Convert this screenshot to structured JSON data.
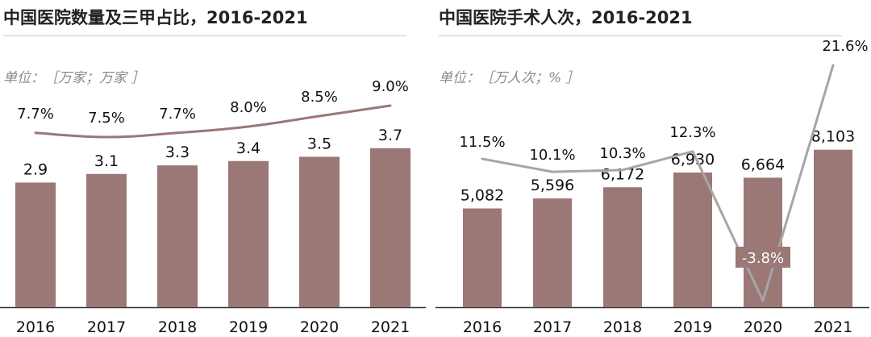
{
  "colors": {
    "bar": "#9b7776",
    "line_left": "#9b7776",
    "line_right": "#a6a6a6",
    "label_bg_negative": "#9b7776"
  },
  "panels": [
    {
      "title": "中国医院数量及三甲占比，2016-2021",
      "unit": "单位：［万家；万家 ］"
    },
    {
      "title": "中国医院手术人次，2016-2021",
      "unit": "单位：［万人次；%  ］"
    }
  ],
  "chart_data": [
    {
      "type": "bar",
      "title": "中国医院数量及三甲占比，2016-2021",
      "unit_label": "单位：［万家；万家 ］",
      "categories": [
        "2016",
        "2017",
        "2018",
        "2019",
        "2020",
        "2021"
      ],
      "series": [
        {
          "type": "bar",
          "values": [
            2.9,
            3.1,
            3.3,
            3.4,
            3.5,
            3.7
          ],
          "labels": [
            "2.9",
            "3.1",
            "3.3",
            "3.4",
            "3.5",
            "3.7"
          ]
        },
        {
          "type": "line",
          "values": [
            7.7,
            7.5,
            7.7,
            8.0,
            8.5,
            9.0
          ],
          "labels": [
            "7.7%",
            "7.5%",
            "7.7%",
            "8.0%",
            "8.5%",
            "9.0%"
          ]
        }
      ],
      "legend": "none",
      "grid": false
    },
    {
      "type": "bar",
      "title": "中国医院手术人次，2016-2021",
      "unit_label": "单位：［万人次；%  ］",
      "categories": [
        "2016",
        "2017",
        "2018",
        "2019",
        "2020",
        "2021"
      ],
      "series": [
        {
          "type": "bar",
          "values": [
            5082,
            5596,
            6172,
            6930,
            6664,
            8103
          ],
          "labels": [
            "5,082",
            "5,596",
            "6,172",
            "6,930",
            "6,664",
            "8,103"
          ]
        },
        {
          "type": "line",
          "values": [
            11.5,
            10.1,
            10.3,
            12.3,
            -3.8,
            21.6
          ],
          "labels": [
            "11.5%",
            "10.1%",
            "10.3%",
            "12.3%",
            "-3.8%",
            "21.6%"
          ]
        }
      ],
      "legend": "none",
      "grid": false
    }
  ]
}
